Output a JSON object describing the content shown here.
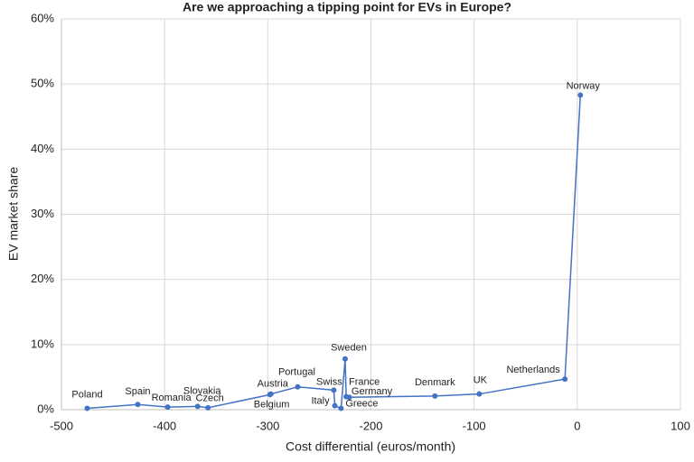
{
  "chart_data": {
    "type": "scatter",
    "title": "Are we approaching a tipping point for EVs in Europe?",
    "x_label": "Cost differential (euros/month)",
    "y_label": "EV market share",
    "color": "#4472c4",
    "labels": [
      "Poland",
      "Spain",
      "Romania",
      "Slovakia",
      "Czech",
      "Belgium",
      "Austria",
      "Portugal",
      "Swiss",
      "Italy",
      "Greece",
      "Sweden",
      "France",
      "Germany",
      "Denmark",
      "UK",
      "Netherlands",
      "Norway"
    ],
    "x": [
      -475,
      -426,
      -397,
      -368,
      -358,
      -298,
      -297,
      -271,
      -236,
      -235,
      -229,
      -225,
      -224,
      -221,
      -138,
      -95,
      -12,
      3
    ],
    "values": [
      0.2,
      0.8,
      0.4,
      0.5,
      0.3,
      2.3,
      2.4,
      3.5,
      3.0,
      0.6,
      0.2,
      7.8,
      2.0,
      1.9,
      2.1,
      2.4,
      4.7,
      48.3
    ],
    "xlim": [
      -500,
      100
    ],
    "xticks": [
      -500,
      -400,
      -300,
      -200,
      -100,
      0,
      100
    ],
    "ylim": [
      0,
      60
    ],
    "yticks": [
      {
        "value": 0,
        "label": "0%"
      },
      {
        "value": 10,
        "label": "10%"
      },
      {
        "value": 20,
        "label": "20%"
      },
      {
        "value": 30,
        "label": "30%"
      },
      {
        "value": 40,
        "label": "40%"
      },
      {
        "value": 50,
        "label": "50%"
      },
      {
        "value": 60,
        "label": "60%"
      }
    ],
    "grid": true
  }
}
